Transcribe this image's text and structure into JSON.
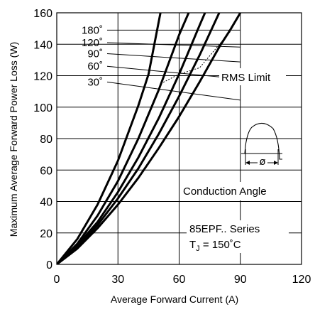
{
  "chart_data": {
    "type": "line",
    "xlabel": "Average Forward Current (A)",
    "ylabel": "Maximum Average Forward Power Loss (W)",
    "xlim": [
      0,
      120
    ],
    "ylim": [
      0,
      160
    ],
    "x_ticks": [
      "0",
      "30",
      "60",
      "90",
      "120"
    ],
    "y_ticks": [
      "0",
      "20",
      "40",
      "60",
      "80",
      "100",
      "120",
      "140",
      "160"
    ],
    "grid": true,
    "series": [
      {
        "name": "180˚",
        "label_y": 149,
        "points": [
          [
            0,
            0
          ],
          [
            10,
            10
          ],
          [
            20,
            23
          ],
          [
            30,
            38
          ],
          [
            40,
            55
          ],
          [
            50,
            74
          ],
          [
            60,
            94
          ],
          [
            70,
            116
          ],
          [
            80,
            139
          ],
          [
            85,
            149
          ],
          [
            90,
            160
          ]
        ]
      },
      {
        "name": "120˚",
        "label_y": 141,
        "points": [
          [
            0,
            0
          ],
          [
            10,
            11
          ],
          [
            20,
            25
          ],
          [
            30,
            42
          ],
          [
            40,
            61
          ],
          [
            50,
            83
          ],
          [
            60,
            107
          ],
          [
            70,
            133
          ],
          [
            80,
            161
          ]
        ]
      },
      {
        "name": "90˚",
        "label_y": 134,
        "points": [
          [
            0,
            0
          ],
          [
            10,
            12
          ],
          [
            20,
            27
          ],
          [
            30,
            46
          ],
          [
            40,
            68
          ],
          [
            50,
            93
          ],
          [
            60,
            121
          ],
          [
            70,
            152
          ],
          [
            73,
            161
          ]
        ]
      },
      {
        "name": "60˚",
        "label_y": 126,
        "points": [
          [
            0,
            0
          ],
          [
            10,
            13
          ],
          [
            20,
            31
          ],
          [
            30,
            53
          ],
          [
            40,
            80
          ],
          [
            50,
            111
          ],
          [
            60,
            146
          ],
          [
            65,
            161
          ]
        ]
      },
      {
        "name": "30˚",
        "label_y": 116,
        "points": [
          [
            0,
            0
          ],
          [
            10,
            16
          ],
          [
            20,
            38
          ],
          [
            30,
            66
          ],
          [
            40,
            101
          ],
          [
            45,
            121
          ],
          [
            51,
            161
          ]
        ]
      }
    ],
    "rms_limit": {
      "label": "RMS Limit",
      "points": [
        [
          51,
          115
        ],
        [
          60,
          121
        ],
        [
          70,
          125
        ],
        [
          85,
          148
        ]
      ]
    },
    "annotations": {
      "conduction_label": "Conduction Angle",
      "phi_symbol": "ø",
      "series_label": "85EPF.. Series",
      "temp_prefix": "T",
      "temp_subscript": "J",
      "temp_value": " = 150˚C"
    },
    "colors": {
      "curve": "#000000",
      "grid": "#000000",
      "background": "#ffffff"
    }
  }
}
